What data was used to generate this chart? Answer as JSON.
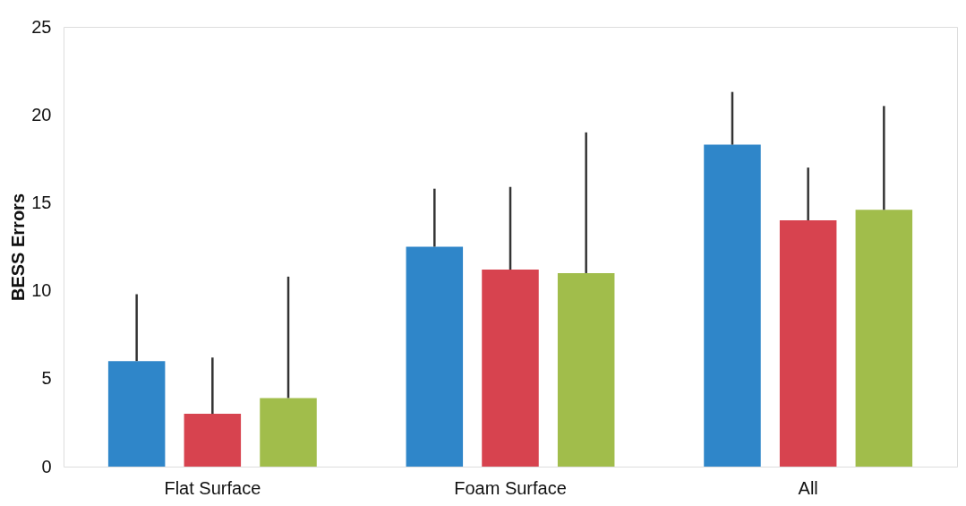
{
  "chart_data": {
    "type": "bar",
    "ylabel": "BESS Errors",
    "categories": [
      "Flat Surface",
      "Foam Surface",
      "All"
    ],
    "ylim": [
      0,
      25
    ],
    "yticks": [
      0,
      5,
      10,
      15,
      20,
      25
    ],
    "grid": false,
    "legend": false,
    "series": [
      {
        "color": "#2f86c9",
        "values": [
          6.0,
          12.5,
          18.3
        ],
        "errors": [
          [
            6.0,
            9.8
          ],
          [
            12.5,
            15.8
          ],
          [
            18.3,
            21.3
          ]
        ]
      },
      {
        "color": "#d7434f",
        "values": [
          3.0,
          11.2,
          14.0
        ],
        "errors": [
          [
            3.0,
            6.2
          ],
          [
            11.2,
            15.9
          ],
          [
            14.0,
            17.0
          ]
        ]
      },
      {
        "color": "#a1bd4b",
        "values": [
          3.9,
          11.0,
          14.6
        ],
        "errors": [
          [
            3.9,
            10.8
          ],
          [
            11.0,
            19.0
          ],
          [
            14.6,
            20.5
          ]
        ]
      }
    ]
  }
}
